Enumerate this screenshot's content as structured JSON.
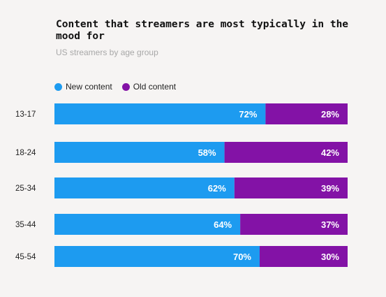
{
  "chart_data": {
    "type": "bar",
    "orientation": "horizontal",
    "stacked": true,
    "title": "Content that streamers are most typically in the mood for",
    "subtitle": "US streamers by age group",
    "categories": [
      "13-17",
      "18-24",
      "25-34",
      "35-44",
      "45-54"
    ],
    "series": [
      {
        "name": "New content",
        "color": "#1d9bf0",
        "values": [
          72,
          58,
          62,
          64,
          70
        ],
        "labels": [
          "72%",
          "58%",
          "62%",
          "64%",
          "70%"
        ]
      },
      {
        "name": "Old content",
        "color": "#8312a6",
        "values": [
          28,
          42,
          39,
          37,
          30
        ],
        "labels": [
          "28%",
          "42%",
          "39%",
          "37%",
          "30%"
        ]
      }
    ],
    "legend_position": "top-left",
    "grid": false
  }
}
